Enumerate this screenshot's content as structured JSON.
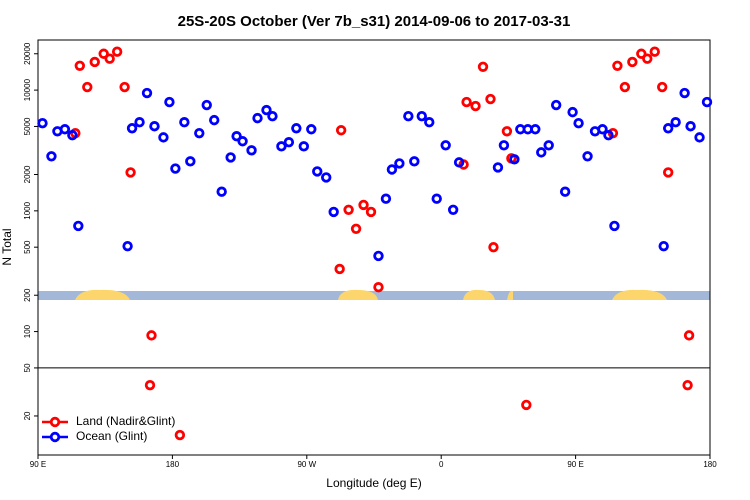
{
  "chart_data": {
    "type": "scatter",
    "title": "25S-20S October (Ver 7b_s31)   2014-09-06 to 2017-03-31",
    "xlabel": "Longitude (deg E)",
    "ylabel": "N Total",
    "xlim": [
      90,
      540
    ],
    "ylim": [
      9.5,
      26000
    ],
    "log_y": true,
    "xticks": [
      {
        "value": 90,
        "label": "90 E"
      },
      180,
      {
        "value": 270,
        "label": "90 W"
      },
      {
        "value": 360,
        "label": "0"
      },
      {
        "value": 450,
        "label": "90 E"
      },
      {
        "value": 540,
        "label": "180"
      }
    ],
    "yticks": [
      20,
      50,
      100,
      200,
      500,
      1000,
      2000,
      5000,
      10000,
      20000
    ],
    "hlines": [
      50
    ],
    "legend": "lower left",
    "series": [
      {
        "name": "Land (Nadir&Glint)",
        "color": "#ff0000",
        "x": [
          115,
          118,
          123,
          128,
          134,
          138,
          143,
          148,
          152,
          166,
          165,
          185,
          292,
          293,
          298,
          303,
          308,
          313,
          318,
          375,
          377,
          383,
          388,
          393,
          395,
          404,
          407,
          417,
          475,
          478,
          483,
          488,
          494,
          498,
          503,
          508,
          512,
          526,
          525
        ],
        "values": [
          4400,
          15900,
          10600,
          17100,
          20000,
          18200,
          20800,
          10600,
          2080,
          93,
          36,
          13.9,
          330,
          4650,
          1020,
          710,
          1120,
          980,
          233,
          2420,
          7960,
          7380,
          15600,
          8430,
          500,
          4560,
          2720,
          24.7,
          4400,
          15900,
          10600,
          17100,
          20000,
          18200,
          20800,
          10600,
          2080,
          93,
          36
        ]
      },
      {
        "name": "Ocean (Glint)",
        "color": "#0000ff",
        "x": [
          93,
          99,
          103,
          108,
          113,
          117,
          150,
          153,
          158,
          163,
          168,
          174,
          178,
          182,
          188,
          192,
          198,
          203,
          208,
          213,
          219,
          223,
          227,
          233,
          237,
          243,
          247,
          253,
          258,
          263,
          268,
          273,
          277,
          283,
          288,
          318,
          323,
          327,
          332,
          342,
          338,
          347,
          352,
          357,
          363,
          368,
          372,
          398,
          402,
          409,
          413,
          418,
          423,
          427,
          432,
          437,
          443,
          448,
          452,
          458,
          463,
          468,
          472,
          476,
          509,
          512,
          517,
          523,
          527,
          533,
          538
        ],
        "values": [
          5320,
          2830,
          4560,
          4740,
          4230,
          750,
          510,
          4830,
          5420,
          9460,
          5020,
          4060,
          7960,
          2240,
          5420,
          2570,
          4400,
          7520,
          5640,
          1440,
          2770,
          4150,
          3770,
          3170,
          5860,
          6830,
          6080,
          3420,
          3700,
          4830,
          3420,
          4740,
          2120,
          1890,
          980,
          423,
          1260,
          2200,
          2470,
          2570,
          6080,
          6080,
          5420,
          1260,
          3490,
          1020,
          2520,
          2290,
          3490,
          2670,
          4740,
          4740,
          4740,
          3050,
          3490,
          7520,
          1440,
          6570,
          5320,
          2830,
          4560,
          4740,
          4230,
          750,
          510,
          4830,
          5420,
          9460,
          5020,
          4060,
          7960
        ]
      }
    ]
  }
}
